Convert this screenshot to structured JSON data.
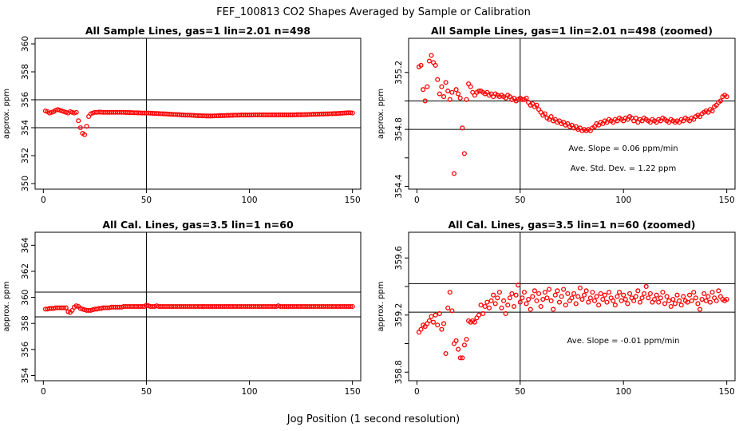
{
  "figure": {
    "title": "FEF_100813  CO2 Shapes Averaged by Sample or Calibration",
    "xlabel": "Jog Position (1 second resolution)"
  },
  "colors": {
    "points": "#ff0000",
    "lines": "#000000",
    "background": "#ffffff"
  },
  "chart_data": [
    {
      "type": "scatter",
      "title": "All Sample Lines, gas=1 lin=2.01 n=498",
      "xlabel": "",
      "ylabel": "approx. ppm",
      "xlim": [
        -4,
        154
      ],
      "ylim": [
        349.6,
        360.4
      ],
      "xticks": [
        0,
        50,
        100,
        150
      ],
      "yticks": [
        350,
        352,
        354,
        356,
        358,
        360
      ],
      "vline": 50,
      "hlines": [
        354,
        356
      ],
      "annotations": [],
      "series": [
        {
          "name": "sample",
          "x_start": 1,
          "x_step": 1,
          "y": [
            355.2,
            355.15,
            355.05,
            355.1,
            355.15,
            355.25,
            355.3,
            355.25,
            355.2,
            355.15,
            355.1,
            355.05,
            355.15,
            355.1,
            355.05,
            355.1,
            354.5,
            354.0,
            353.6,
            353.5,
            354.1,
            354.8,
            355.0,
            355.05,
            355.1,
            355.1,
            355.12,
            355.11,
            355.1,
            355.1,
            355.1,
            355.1,
            355.1,
            355.1,
            355.1,
            355.1,
            355.1,
            355.1,
            355.1,
            355.09,
            355.09,
            355.08,
            355.08,
            355.07,
            355.07,
            355.06,
            355.06,
            355.05,
            355.05,
            355.05,
            355.05,
            355.04,
            355.03,
            355.02,
            355.02,
            355.01,
            355.0,
            355.0,
            354.99,
            354.98,
            354.97,
            354.96,
            354.95,
            354.95,
            354.94,
            354.93,
            354.92,
            354.91,
            354.9,
            354.9,
            354.9,
            354.89,
            354.88,
            354.87,
            354.86,
            354.86,
            354.85,
            354.85,
            354.84,
            354.84,
            354.84,
            354.84,
            354.85,
            354.85,
            354.86,
            354.86,
            354.87,
            354.87,
            354.88,
            354.88,
            354.89,
            354.89,
            354.9,
            354.9,
            354.9,
            354.91,
            354.91,
            354.91,
            354.91,
            354.91,
            354.91,
            354.92,
            354.92,
            354.92,
            354.92,
            354.92,
            354.92,
            354.92,
            354.92,
            354.92,
            354.92,
            354.92,
            354.92,
            354.92,
            354.92,
            354.92,
            354.92,
            354.92,
            354.92,
            354.92,
            354.92,
            354.92,
            354.93,
            354.93,
            354.93,
            354.93,
            354.94,
            354.94,
            354.95,
            354.95,
            354.96,
            354.96,
            354.97,
            354.97,
            354.98,
            354.98,
            354.99,
            354.99,
            355.0,
            355.0,
            355.01,
            355.01,
            355.02,
            355.03,
            355.04,
            355.05,
            355.06,
            355.07,
            355.07,
            355.05
          ]
        }
      ]
    },
    {
      "type": "scatter",
      "title": "All Sample Lines, gas=1 lin=2.01 n=498 (zoomed)",
      "xlabel": "",
      "ylabel": "approx. ppm",
      "xlim": [
        -4,
        154
      ],
      "ylim": [
        354.38,
        355.44
      ],
      "xticks": [
        0,
        50,
        100,
        150
      ],
      "yticks": [
        354.4,
        354.6,
        354.8,
        355.0,
        355.2
      ],
      "ytick_labels": [
        "354.4",
        "",
        "354.8",
        "",
        "355.2"
      ],
      "vline": 50,
      "hlines": [
        354.8,
        355.0
      ],
      "annotations": [
        "Ave. Slope =  0.06  ppm/min",
        "Ave. Std. Dev. =  1.22  ppm"
      ],
      "series": [
        {
          "name": "sample-zoomed",
          "x_start": 1,
          "x_step": 1,
          "y": [
            355.24,
            355.25,
            355.08,
            355.0,
            355.1,
            355.28,
            355.32,
            355.27,
            355.25,
            355.15,
            355.05,
            355.1,
            355.03,
            355.13,
            355.07,
            355.01,
            355.06,
            354.49,
            355.08,
            355.05,
            355.02,
            354.81,
            354.63,
            355.01,
            355.12,
            355.1,
            355.06,
            355.04,
            355.06,
            355.07,
            355.07,
            355.06,
            355.05,
            355.06,
            355.04,
            355.05,
            355.03,
            355.05,
            355.04,
            355.03,
            355.04,
            355.03,
            355.02,
            355.04,
            355.03,
            355.01,
            355.02,
            355.0,
            355.01,
            355.02,
            355.01,
            355.01,
            355.02,
            354.99,
            354.97,
            354.98,
            354.96,
            354.97,
            354.94,
            354.92,
            354.9,
            354.91,
            354.88,
            354.87,
            354.89,
            354.86,
            354.87,
            354.85,
            354.86,
            354.84,
            354.85,
            354.83,
            354.84,
            354.82,
            354.83,
            354.81,
            354.82,
            354.8,
            354.81,
            354.79,
            354.8,
            354.79,
            354.8,
            354.79,
            354.81,
            354.82,
            354.84,
            354.83,
            354.85,
            354.84,
            354.86,
            354.85,
            354.87,
            354.86,
            354.85,
            354.87,
            354.86,
            354.88,
            354.87,
            354.86,
            354.88,
            354.87,
            354.89,
            354.88,
            354.86,
            354.88,
            354.85,
            354.87,
            354.86,
            354.88,
            354.87,
            354.86,
            354.85,
            354.87,
            354.86,
            354.85,
            354.87,
            354.86,
            354.88,
            354.87,
            354.86,
            354.85,
            354.87,
            354.86,
            354.85,
            354.86,
            354.85,
            354.87,
            354.86,
            354.88,
            354.87,
            354.86,
            354.88,
            354.87,
            354.89,
            354.9,
            354.89,
            354.91,
            354.92,
            354.93,
            354.92,
            354.94,
            354.93,
            354.96,
            354.97,
            354.99,
            355.0,
            355.03,
            355.04,
            355.03
          ]
        }
      ]
    },
    {
      "type": "scatter",
      "title": "All Cal. Lines, gas=3.5 lin=1 n=60",
      "xlabel": "",
      "ylabel": "approx. ppm",
      "xlim": [
        -4,
        154
      ],
      "ylim": [
        353.6,
        365.0
      ],
      "xticks": [
        0,
        50,
        100,
        150
      ],
      "yticks": [
        354,
        356,
        358,
        360,
        362,
        364
      ],
      "vline": 50,
      "hlines": [
        358.5,
        360.4
      ],
      "annotations": [],
      "series": [
        {
          "name": "calibration",
          "x_start": 1,
          "x_step": 1,
          "y": [
            359.1,
            359.1,
            359.15,
            359.15,
            359.15,
            359.2,
            359.2,
            359.2,
            359.2,
            359.2,
            359.2,
            358.9,
            358.85,
            359.0,
            359.25,
            359.35,
            359.3,
            359.15,
            359.1,
            359.05,
            359.0,
            359.0,
            359.0,
            359.05,
            359.1,
            359.1,
            359.15,
            359.15,
            359.2,
            359.2,
            359.2,
            359.2,
            359.25,
            359.25,
            359.25,
            359.25,
            359.25,
            359.25,
            359.3,
            359.3,
            359.3,
            359.3,
            359.3,
            359.3,
            359.3,
            359.3,
            359.3,
            359.3,
            359.3,
            359.4,
            359.35,
            359.3,
            359.3,
            359.3,
            359.35,
            359.3,
            359.3,
            359.3,
            359.3,
            359.3,
            359.3,
            359.3,
            359.3,
            359.3,
            359.3,
            359.3,
            359.3,
            359.3,
            359.3,
            359.3,
            359.3,
            359.3,
            359.3,
            359.3,
            359.3,
            359.3,
            359.3,
            359.3,
            359.3,
            359.3,
            359.3,
            359.3,
            359.3,
            359.3,
            359.3,
            359.3,
            359.3,
            359.3,
            359.3,
            359.3,
            359.3,
            359.3,
            359.3,
            359.3,
            359.3,
            359.3,
            359.3,
            359.3,
            359.3,
            359.3,
            359.3,
            359.3,
            359.3,
            359.3,
            359.3,
            359.3,
            359.3,
            359.3,
            359.3,
            359.3,
            359.3,
            359.3,
            359.3,
            359.35,
            359.3,
            359.3,
            359.3,
            359.3,
            359.3,
            359.3,
            359.3,
            359.3,
            359.3,
            359.3,
            359.3,
            359.3,
            359.3,
            359.3,
            359.3,
            359.3,
            359.3,
            359.3,
            359.3,
            359.3,
            359.3,
            359.3,
            359.3,
            359.3,
            359.3,
            359.3,
            359.3,
            359.3,
            359.3,
            359.3,
            359.3,
            359.3,
            359.3,
            359.3,
            359.3,
            359.3
          ]
        }
      ]
    },
    {
      "type": "scatter",
      "title": "All Cal. Lines, gas=3.5 lin=1 n=60 (zoomed)",
      "xlabel": "",
      "ylabel": "approx. ppm",
      "xlim": [
        -4,
        154
      ],
      "ylim": [
        358.74,
        359.78
      ],
      "xticks": [
        0,
        50,
        100,
        150
      ],
      "yticks": [
        358.8,
        359.0,
        359.2,
        359.4,
        359.6
      ],
      "ytick_labels": [
        "358.8",
        "",
        "359.2",
        "",
        "359.6"
      ],
      "vline": 50,
      "hlines": [
        359.22,
        359.42
      ],
      "annotations": [
        "Ave. Slope =  -0.01  ppm/min"
      ],
      "series": [
        {
          "name": "calibration-zoomed",
          "x_start": 1,
          "x_step": 1,
          "y": [
            359.08,
            359.1,
            359.13,
            359.12,
            359.14,
            359.16,
            359.19,
            359.15,
            359.2,
            359.13,
            359.21,
            359.1,
            359.14,
            358.93,
            359.25,
            359.36,
            359.23,
            359.0,
            359.02,
            358.96,
            358.9,
            358.9,
            358.99,
            359.03,
            359.16,
            359.15,
            359.16,
            359.15,
            359.18,
            359.2,
            359.27,
            359.21,
            359.26,
            359.29,
            359.25,
            359.3,
            359.34,
            359.28,
            359.32,
            359.36,
            359.25,
            359.3,
            359.21,
            359.27,
            359.32,
            359.35,
            359.26,
            359.34,
            359.41,
            359.29,
            359.32,
            359.36,
            359.28,
            359.31,
            359.24,
            359.33,
            359.37,
            359.3,
            359.35,
            359.26,
            359.31,
            359.36,
            359.32,
            359.38,
            359.3,
            359.24,
            359.34,
            359.37,
            359.29,
            359.33,
            359.38,
            359.27,
            359.35,
            359.3,
            359.32,
            359.35,
            359.28,
            359.33,
            359.39,
            359.31,
            359.34,
            359.37,
            359.29,
            359.32,
            359.36,
            359.3,
            359.33,
            359.27,
            359.35,
            359.31,
            359.34,
            359.29,
            359.36,
            359.32,
            359.3,
            359.27,
            359.33,
            359.36,
            359.3,
            359.34,
            359.31,
            359.28,
            359.35,
            359.32,
            359.3,
            359.33,
            359.37,
            359.29,
            359.32,
            359.35,
            359.4,
            359.32,
            359.35,
            359.29,
            359.31,
            359.34,
            359.29,
            359.32,
            359.36,
            359.28,
            359.33,
            359.3,
            359.26,
            359.31,
            359.28,
            359.34,
            359.3,
            359.27,
            359.33,
            359.3,
            359.29,
            359.34,
            359.3,
            359.36,
            359.32,
            359.28,
            359.24,
            359.31,
            359.35,
            359.3,
            359.33,
            359.29,
            359.36,
            359.32,
            359.3,
            359.37,
            359.33,
            359.31,
            359.3,
            359.31
          ]
        }
      ]
    }
  ]
}
